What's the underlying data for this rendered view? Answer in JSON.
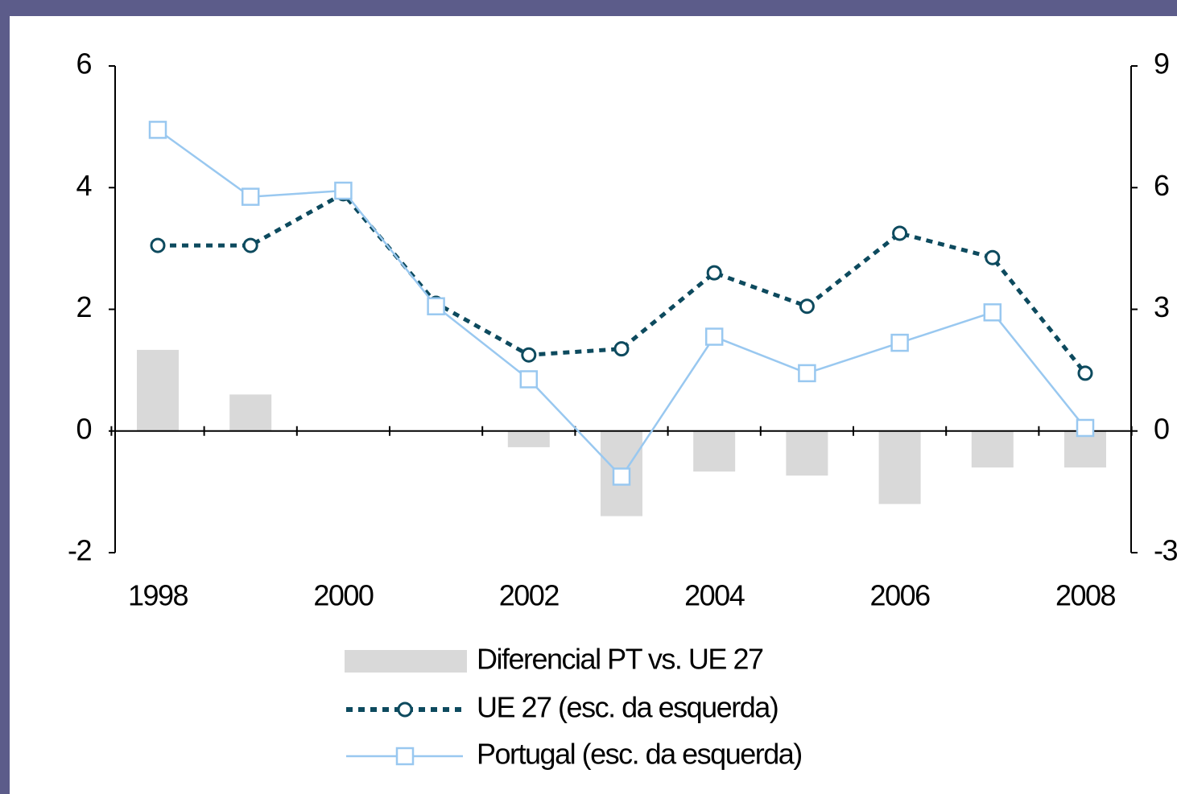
{
  "chart_data": {
    "type": "bar_line",
    "categories": [
      "1998",
      null,
      "2000",
      null,
      "2002",
      null,
      "2004",
      null,
      "2006",
      null,
      "2008"
    ],
    "series": [
      {
        "name": "Diferencial PT vs. UE 27",
        "type": "bar",
        "axis": "y2",
        "color": "#d9d9d9",
        "values": [
          2.0,
          0.9,
          0,
          0,
          -0.4,
          -2.1,
          -1.0,
          -1.1,
          -1.8,
          -0.9,
          -0.9
        ]
      },
      {
        "name": "UE 27 (esc. da esquerda)",
        "type": "line",
        "color": "#0d4a5e",
        "values": [
          3.05,
          3.05,
          3.9,
          2.1,
          1.25,
          1.35,
          2.6,
          2.05,
          3.25,
          2.85,
          0.95
        ]
      },
      {
        "name": "Portugal (esc. da esquerda)",
        "type": "line",
        "color": "#99c8f0",
        "values": [
          4.95,
          3.85,
          3.95,
          2.05,
          0.85,
          -0.75,
          1.55,
          0.95,
          1.45,
          1.95,
          0.05
        ]
      }
    ],
    "ylim": [
      -2,
      6
    ],
    "yticks": [
      -2,
      0,
      2,
      4,
      6
    ],
    "y2lim": [
      -3,
      9
    ],
    "y2ticks": [
      -3,
      0,
      3,
      6,
      9
    ]
  }
}
